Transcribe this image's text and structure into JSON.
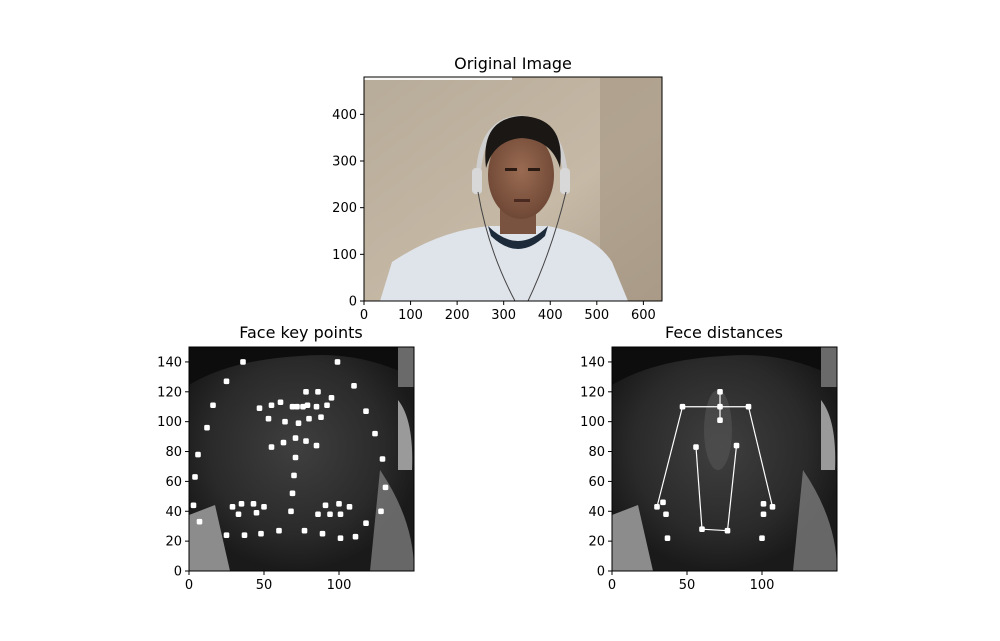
{
  "figure": {
    "panels": [
      {
        "id": "original",
        "title": "Original Image",
        "image_desc": "photo",
        "xlim": [
          0,
          640
        ],
        "ylim": [
          480,
          0
        ],
        "xticks": [
          0,
          100,
          200,
          300,
          400,
          500,
          600
        ],
        "yticks": [
          0,
          100,
          200,
          300,
          400
        ]
      },
      {
        "id": "keypoints",
        "title": "Face key points",
        "xlim": [
          0,
          150
        ],
        "ylim": [
          150,
          0
        ],
        "xticks": [
          0,
          50,
          100
        ],
        "yticks": [
          0,
          20,
          40,
          60,
          80,
          100,
          120,
          140
        ]
      },
      {
        "id": "distances",
        "title": "Fece distances",
        "xlim": [
          0,
          150
        ],
        "ylim": [
          150,
          0
        ],
        "xticks": [
          0,
          50,
          100
        ],
        "yticks": [
          0,
          20,
          40,
          60,
          80,
          100,
          120,
          140
        ]
      }
    ]
  },
  "chart_data": [
    {
      "type": "scatter",
      "panel": "keypoints",
      "points": [
        [
          3,
          44
        ],
        [
          4,
          63
        ],
        [
          6,
          78
        ],
        [
          12,
          96
        ],
        [
          16,
          111
        ],
        [
          25,
          127
        ],
        [
          36,
          140
        ],
        [
          7,
          33
        ],
        [
          25,
          24
        ],
        [
          37,
          24
        ],
        [
          48,
          25
        ],
        [
          60,
          27
        ],
        [
          77,
          27
        ],
        [
          89,
          25
        ],
        [
          101,
          22
        ],
        [
          111,
          23
        ],
        [
          118,
          32
        ],
        [
          128,
          40
        ],
        [
          131,
          56
        ],
        [
          129,
          75
        ],
        [
          124,
          92
        ],
        [
          118,
          107
        ],
        [
          110,
          124
        ],
        [
          99,
          140
        ],
        [
          29,
          43
        ],
        [
          33,
          38
        ],
        [
          35,
          45
        ],
        [
          43,
          45
        ],
        [
          45,
          39
        ],
        [
          50,
          43
        ],
        [
          86,
          38
        ],
        [
          91,
          44
        ],
        [
          94,
          38
        ],
        [
          100,
          45
        ],
        [
          101,
          38
        ],
        [
          107,
          43
        ],
        [
          68,
          40
        ],
        [
          69,
          52
        ],
        [
          70,
          64
        ],
        [
          71,
          76
        ],
        [
          55,
          83
        ],
        [
          63,
          86
        ],
        [
          71,
          89
        ],
        [
          78,
          87
        ],
        [
          85,
          84
        ],
        [
          47,
          109
        ],
        [
          53,
          102
        ],
        [
          55,
          111
        ],
        [
          61,
          113
        ],
        [
          64,
          100
        ],
        [
          69,
          110
        ],
        [
          72,
          110
        ],
        [
          73,
          99
        ],
        [
          76,
          110
        ],
        [
          78,
          120
        ],
        [
          79,
          111
        ],
        [
          80,
          102
        ],
        [
          85,
          110
        ],
        [
          86,
          120
        ],
        [
          88,
          103
        ],
        [
          92,
          111
        ],
        [
          95,
          116
        ]
      ]
    },
    {
      "type": "line",
      "panel": "distances",
      "segments": [
        [
          [
            30,
            43
          ],
          [
            47,
            110
          ]
        ],
        [
          [
            47,
            110
          ],
          [
            72,
            110
          ]
        ],
        [
          [
            72,
            110
          ],
          [
            91,
            110
          ]
        ],
        [
          [
            91,
            110
          ],
          [
            107,
            43
          ]
        ],
        [
          [
            72,
            101
          ],
          [
            72,
            120
          ]
        ],
        [
          [
            60,
            28
          ],
          [
            77,
            27
          ]
        ],
        [
          [
            60,
            28
          ],
          [
            56,
            83
          ]
        ],
        [
          [
            77,
            27
          ],
          [
            83,
            84
          ]
        ]
      ],
      "points": [
        [
          30,
          43
        ],
        [
          37,
          22
        ],
        [
          36,
          38
        ],
        [
          34,
          46
        ],
        [
          100,
          22
        ],
        [
          101,
          38
        ],
        [
          101,
          45
        ],
        [
          107,
          43
        ],
        [
          60,
          28
        ],
        [
          77,
          27
        ],
        [
          56,
          83
        ],
        [
          83,
          84
        ],
        [
          47,
          110
        ],
        [
          72,
          101
        ],
        [
          72,
          110
        ],
        [
          91,
          110
        ],
        [
          72,
          120
        ]
      ]
    }
  ]
}
